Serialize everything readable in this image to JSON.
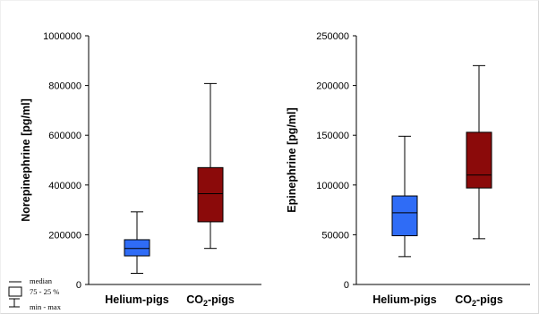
{
  "chart_data": [
    {
      "type": "box",
      "ylabel": "Norepinephrine [pg/ml]",
      "ylim": [
        0,
        1000000
      ],
      "yticks": [
        "0",
        "200000",
        "400000",
        "600000",
        "800000",
        "1000000"
      ],
      "categories": [
        "Helium-pigs",
        "CO2-pigs"
      ],
      "series": [
        {
          "category": "Helium-pigs",
          "min": 45000,
          "q1": 115000,
          "median": 145000,
          "q3": 180000,
          "max": 292000,
          "color": "#2f6cf6"
        },
        {
          "category": "CO2-pigs",
          "min": 145000,
          "q1": 252000,
          "median": 365000,
          "q3": 470000,
          "max": 808000,
          "color": "#8b0a0a"
        }
      ]
    },
    {
      "type": "box",
      "ylabel": "Epinephrine [pg/ml]",
      "ylim": [
        0,
        250000
      ],
      "yticks": [
        "0",
        "50000",
        "100000",
        "150000",
        "200000",
        "250000"
      ],
      "categories": [
        "Helium-pigs",
        "CO2-pigs"
      ],
      "series": [
        {
          "category": "Helium-pigs",
          "min": 28000,
          "q1": 49000,
          "median": 72000,
          "q3": 89000,
          "max": 149000,
          "color": "#2f6cf6"
        },
        {
          "category": "CO2-pigs",
          "min": 46000,
          "q1": 97000,
          "median": 110000,
          "q3": 153000,
          "max": 220000,
          "color": "#8b0a0a"
        }
      ]
    }
  ],
  "legend": {
    "median": "median",
    "iqr": "75 - 25 %",
    "range": "min - max"
  }
}
